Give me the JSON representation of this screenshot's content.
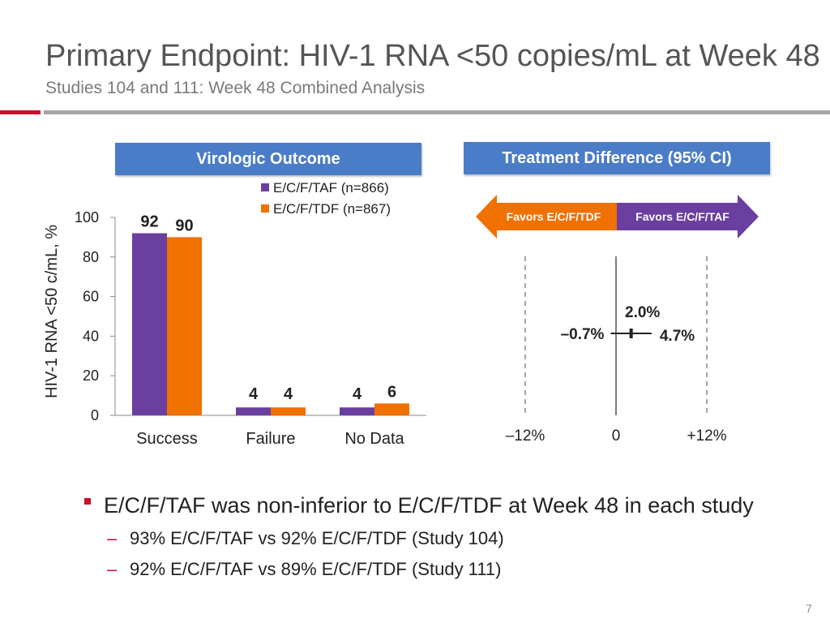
{
  "slide": {
    "title": "Primary Endpoint: HIV-1 RNA <50 copies/mL at Week 48",
    "subtitle": "Studies 104 and 111: Week 48 Combined Analysis",
    "page_number": "7"
  },
  "colors": {
    "accent_red": "#c8102e",
    "header_blue": "#4a7cc8",
    "taf_purple": "#6a3fa0",
    "tdf_orange": "#f07000"
  },
  "left_panel": {
    "header": "Virologic Outcome"
  },
  "right_panel": {
    "header": "Treatment Difference (95% CI)"
  },
  "chart_data": [
    {
      "type": "bar",
      "title": "",
      "xlabel": "",
      "ylabel": "HIV-1 RNA <50 c/mL, %",
      "ylim": [
        0,
        100
      ],
      "yticks": [
        "0",
        "20",
        "40",
        "60",
        "80",
        "100"
      ],
      "categories": [
        "Success",
        "Failure",
        "No Data"
      ],
      "series": [
        {
          "name": "E/C/F/TAF (n=866)",
          "values": [
            92,
            4,
            4
          ],
          "labels": [
            "92",
            "4",
            "4"
          ]
        },
        {
          "name": "E/C/F/TDF (n=867)",
          "values": [
            90,
            4,
            6
          ],
          "labels": [
            "90",
            "4",
            "6"
          ]
        }
      ],
      "legend": "top-right",
      "grid": false
    },
    {
      "type": "forest",
      "xlim": [
        -12,
        12
      ],
      "xticks": [
        {
          "value": -12,
          "label": "–12%"
        },
        {
          "value": 0,
          "label": "0"
        },
        {
          "value": 12,
          "label": "+12%"
        }
      ],
      "point": {
        "value": 2.0,
        "label": "2.0%"
      },
      "ci": {
        "lower": -0.7,
        "upper": 4.7,
        "lower_label": "–0.7%",
        "upper_label": "4.7%"
      },
      "favors_left": "Favors E/C/F/TDF",
      "favors_right": "Favors E/C/F/TAF"
    }
  ],
  "bullets": {
    "main": "E/C/F/TAF was non-inferior to E/C/F/TDF at Week 48 in each study",
    "sub": [
      "93% E/C/F/TAF vs 92% E/C/F/TDF (Study 104)",
      "92% E/C/F/TAF vs 89% E/C/F/TDF (Study 111)"
    ]
  }
}
